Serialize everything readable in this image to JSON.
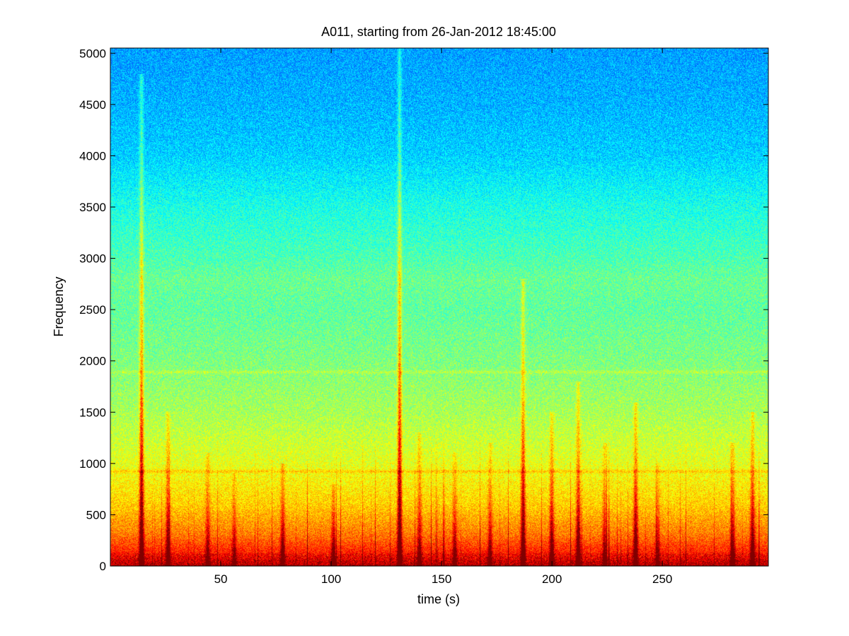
{
  "chart_data": {
    "type": "heatmap",
    "title": "A011, starting from 26-Jan-2012 18:45:00",
    "xlabel": "time (s)",
    "ylabel": "Frequency",
    "xlim": [
      0,
      298
    ],
    "ylim": [
      0,
      5050
    ],
    "x_ticks": [
      50,
      100,
      150,
      200,
      250
    ],
    "x_tick_labels": [
      "50",
      "100",
      "150",
      "200",
      "250"
    ],
    "y_ticks": [
      0,
      500,
      1000,
      1500,
      2000,
      2500,
      3000,
      3500,
      4000,
      4500,
      5000
    ],
    "y_tick_labels": [
      "0",
      "500",
      "1000",
      "1500",
      "2000",
      "2500",
      "3000",
      "3500",
      "4000",
      "4500",
      "5000"
    ],
    "grid": false,
    "colormap": "jet",
    "band_profile": [
      {
        "freq": 0,
        "level": 0.93
      },
      {
        "freq": 100,
        "level": 0.86
      },
      {
        "freq": 300,
        "level": 0.76
      },
      {
        "freq": 600,
        "level": 0.67
      },
      {
        "freq": 1000,
        "level": 0.6
      },
      {
        "freq": 1500,
        "level": 0.54
      },
      {
        "freq": 2000,
        "level": 0.5
      },
      {
        "freq": 2500,
        "level": 0.47
      },
      {
        "freq": 2800,
        "level": 0.48
      },
      {
        "freq": 3000,
        "level": 0.45
      },
      {
        "freq": 3500,
        "level": 0.4
      },
      {
        "freq": 4000,
        "level": 0.33
      },
      {
        "freq": 4500,
        "level": 0.3
      },
      {
        "freq": 5050,
        "level": 0.28
      }
    ],
    "horizontal_bands": [
      {
        "freq": 920,
        "boost": 0.07
      },
      {
        "freq": 1890,
        "boost": 0.05
      }
    ],
    "transients": [
      {
        "time": 14,
        "strength": 1.0,
        "top_freq": 4800
      },
      {
        "time": 26,
        "strength": 0.8,
        "top_freq": 1500
      },
      {
        "time": 44,
        "strength": 0.6,
        "top_freq": 1100
      },
      {
        "time": 56,
        "strength": 0.55,
        "top_freq": 900
      },
      {
        "time": 78,
        "strength": 0.75,
        "top_freq": 1000
      },
      {
        "time": 101,
        "strength": 0.7,
        "top_freq": 800
      },
      {
        "time": 131,
        "strength": 1.0,
        "top_freq": 5050
      },
      {
        "time": 140,
        "strength": 0.65,
        "top_freq": 1300
      },
      {
        "time": 156,
        "strength": 0.6,
        "top_freq": 1100
      },
      {
        "time": 172,
        "strength": 0.6,
        "top_freq": 1200
      },
      {
        "time": 187,
        "strength": 0.95,
        "top_freq": 2800
      },
      {
        "time": 200,
        "strength": 0.8,
        "top_freq": 1500
      },
      {
        "time": 212,
        "strength": 0.85,
        "top_freq": 1800
      },
      {
        "time": 224,
        "strength": 0.6,
        "top_freq": 1200
      },
      {
        "time": 238,
        "strength": 0.9,
        "top_freq": 1600
      },
      {
        "time": 248,
        "strength": 0.55,
        "top_freq": 1000
      },
      {
        "time": 282,
        "strength": 0.75,
        "top_freq": 1200
      },
      {
        "time": 291,
        "strength": 0.85,
        "top_freq": 1500
      }
    ]
  }
}
